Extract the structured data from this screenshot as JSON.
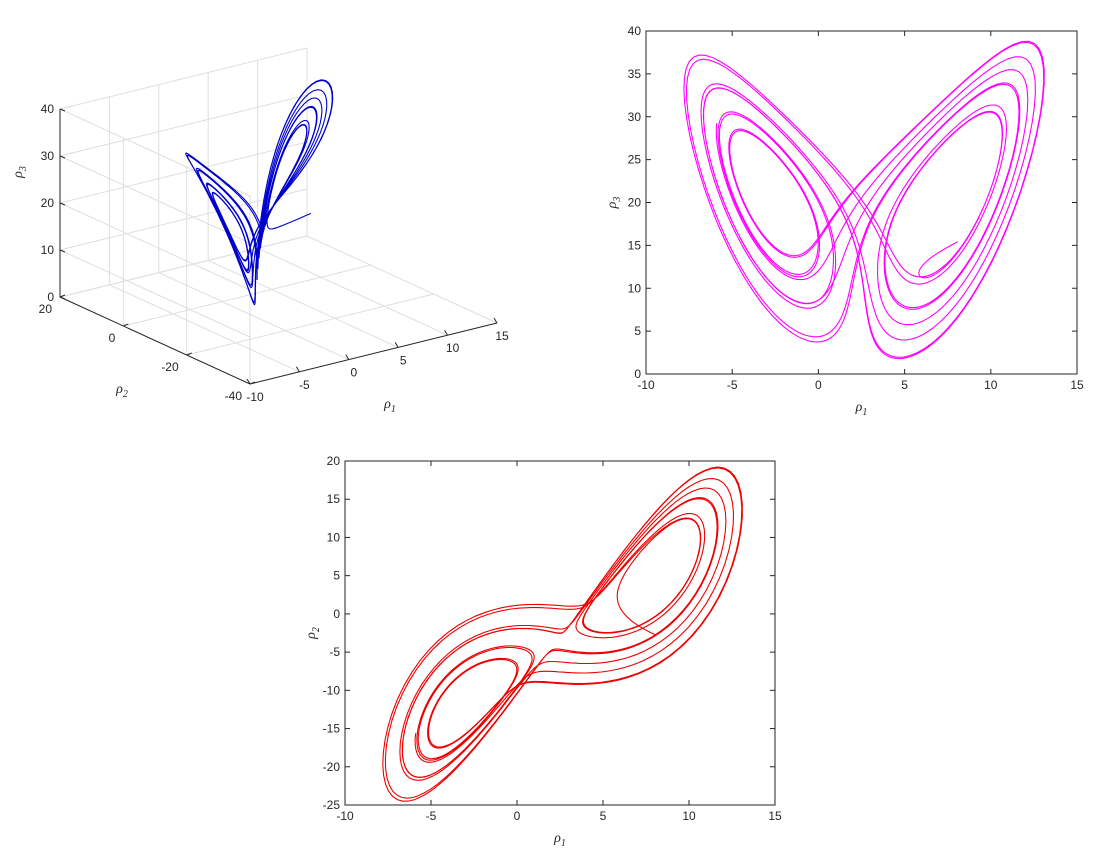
{
  "chart_data": [
    {
      "type": "line",
      "projection": "3d",
      "color": "#0000cc",
      "grid": true,
      "xlabel": "ρ",
      "xlabel_sub": "1",
      "ylabel": "ρ",
      "ylabel_sub": "2",
      "zlabel": "ρ",
      "zlabel_sub": "3",
      "xlim": [
        -10,
        15
      ],
      "ylim": [
        -40,
        20
      ],
      "zlim": [
        0,
        40
      ],
      "xticks": [
        "-10",
        "-5",
        "0",
        "5",
        "10",
        "15"
      ],
      "yticks": [
        "-40",
        "-20",
        "0",
        "20"
      ],
      "zticks": [
        "0",
        "10",
        "20",
        "30",
        "40"
      ]
    },
    {
      "type": "line",
      "color": "#ff00ff",
      "grid": false,
      "xlabel": "ρ",
      "xlabel_sub": "1",
      "ylabel": "ρ",
      "ylabel_sub": "3",
      "xlim": [
        -10,
        15
      ],
      "ylim": [
        0,
        40
      ],
      "xticks": [
        "-10",
        "-5",
        "0",
        "5",
        "10",
        "15"
      ],
      "yticks": [
        "0",
        "5",
        "10",
        "15",
        "20",
        "25",
        "30",
        "35",
        "40"
      ]
    },
    {
      "type": "line",
      "color": "#ee0000",
      "grid": false,
      "xlabel": "ρ",
      "xlabel_sub": "1",
      "ylabel": "ρ",
      "ylabel_sub": "2",
      "xlim": [
        -10,
        15
      ],
      "ylim": [
        -25,
        20
      ],
      "xticks": [
        "-10",
        "-5",
        "0",
        "5",
        "10",
        "15"
      ],
      "yticks": [
        "-25",
        "-20",
        "-15",
        "-10",
        "-5",
        "0",
        "5",
        "10",
        "15",
        "20"
      ]
    }
  ]
}
